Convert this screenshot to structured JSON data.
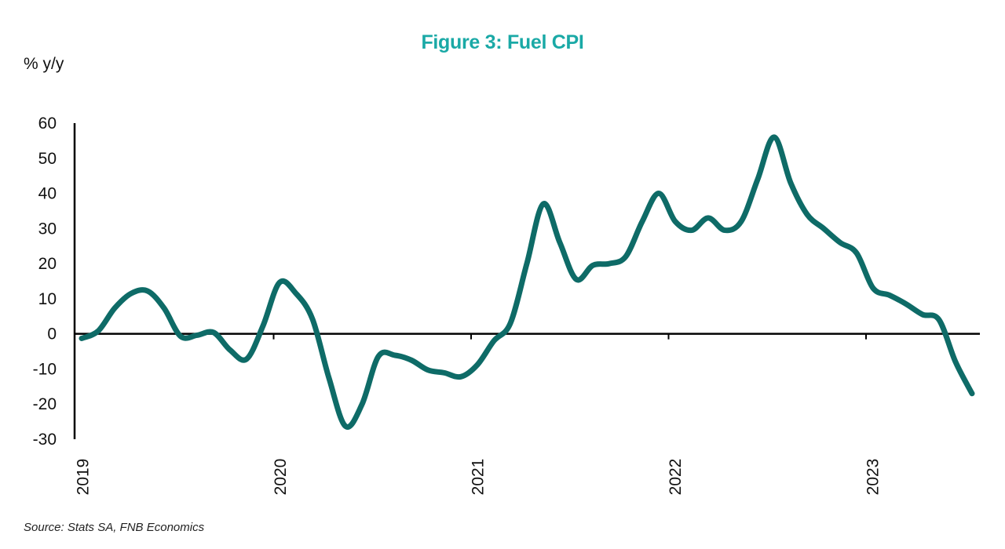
{
  "chart_data": {
    "type": "line",
    "title": "Figure 3: Fuel CPI",
    "ylabel": "% y/y",
    "xlabel": "",
    "source": "Source: Stats SA, FNB Economics",
    "ylim": [
      -30,
      60
    ],
    "yticks": [
      60,
      50,
      40,
      30,
      20,
      10,
      0,
      -10,
      -20,
      -30
    ],
    "xticks": [
      "2019",
      "2020",
      "2021",
      "2022",
      "2023"
    ],
    "x_start": "2019-01",
    "frequency": "monthly",
    "grid": false,
    "legend": "none",
    "line_color": "#0e6b67",
    "title_color": "#1aa9a6",
    "series": [
      {
        "values": [
          -1.3,
          0.8,
          7.3,
          11.5,
          12.2,
          7.3,
          -0.7,
          -0.4,
          0.4,
          -4.6,
          -7.2,
          2.3,
          14.6,
          11.5,
          4.2,
          -12.6,
          -26.3,
          -20.1,
          -6.4,
          -6.1,
          -7.5,
          -10.3,
          -11.1,
          -12.2,
          -8.8,
          -2,
          3,
          20,
          37,
          26,
          15.5,
          19.5,
          20,
          22,
          32,
          40,
          32,
          29.5,
          33,
          29.5,
          32,
          44,
          56,
          43,
          34,
          30,
          26,
          23,
          13,
          11,
          8.5,
          5.5,
          4,
          -8,
          -17
        ]
      }
    ]
  }
}
